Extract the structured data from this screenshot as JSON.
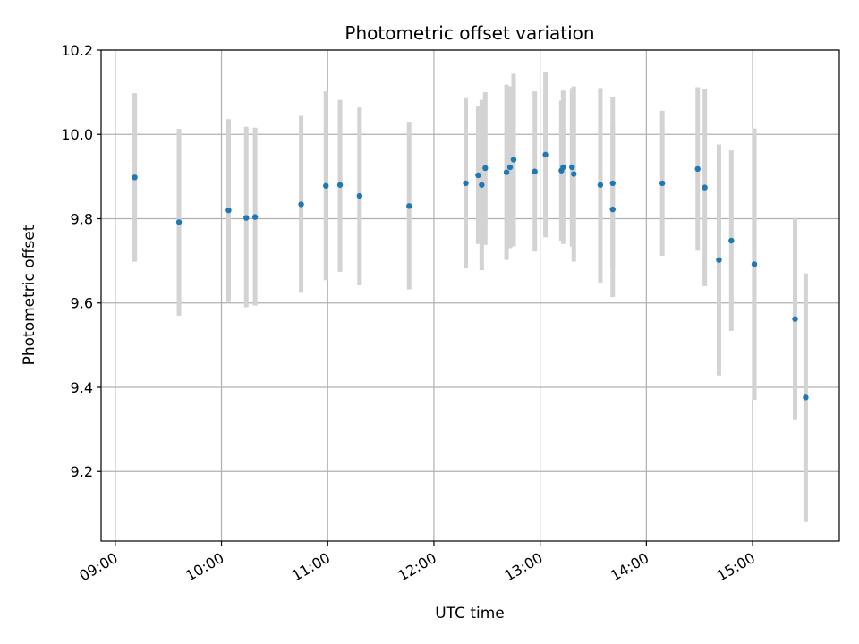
{
  "chart_data": {
    "type": "scatter",
    "title": "Photometric offset variation",
    "xlabel": "UTC time",
    "ylabel": "Photometric offset",
    "x_tick_labels": [
      "09:00",
      "10:00",
      "11:00",
      "12:00",
      "13:00",
      "14:00",
      "15:00"
    ],
    "y_tick_labels": [
      "9.2",
      "9.4",
      "9.6",
      "9.8",
      "10.0",
      "10.2"
    ],
    "xlim": [
      "08:52",
      "15:49"
    ],
    "ylim": [
      9.035,
      10.2
    ],
    "grid": true,
    "colors": {
      "point": "#1f77b4",
      "error_bar": "#d3d3d3",
      "grid": "#b0b0b0"
    },
    "series": [
      {
        "error_bars": true,
        "points": [
          {
            "x": "09:11",
            "y": 9.898,
            "ylow": 9.698,
            "yhigh": 10.098
          },
          {
            "x": "09:36",
            "y": 9.792,
            "ylow": 9.57,
            "yhigh": 10.013
          },
          {
            "x": "10:04",
            "y": 9.82,
            "ylow": 9.602,
            "yhigh": 10.036
          },
          {
            "x": "10:14",
            "y": 9.802,
            "ylow": 9.59,
            "yhigh": 10.018
          },
          {
            "x": "10:19",
            "y": 9.804,
            "ylow": 9.594,
            "yhigh": 10.016
          },
          {
            "x": "10:45",
            "y": 9.834,
            "ylow": 9.624,
            "yhigh": 10.044
          },
          {
            "x": "10:59",
            "y": 9.878,
            "ylow": 9.654,
            "yhigh": 10.102
          },
          {
            "x": "11:07",
            "y": 9.88,
            "ylow": 9.674,
            "yhigh": 10.082
          },
          {
            "x": "11:18",
            "y": 9.854,
            "ylow": 9.642,
            "yhigh": 10.064
          },
          {
            "x": "11:46",
            "y": 9.83,
            "ylow": 9.632,
            "yhigh": 10.03
          },
          {
            "x": "12:18",
            "y": 9.884,
            "ylow": 9.682,
            "yhigh": 10.086
          },
          {
            "x": "12:25",
            "y": 9.903,
            "ylow": 9.74,
            "yhigh": 10.066
          },
          {
            "x": "12:27",
            "y": 9.88,
            "ylow": 9.678,
            "yhigh": 10.082
          },
          {
            "x": "12:29",
            "y": 9.92,
            "ylow": 9.738,
            "yhigh": 10.1
          },
          {
            "x": "12:41",
            "y": 9.91,
            "ylow": 9.702,
            "yhigh": 10.118
          },
          {
            "x": "12:43",
            "y": 9.922,
            "ylow": 9.73,
            "yhigh": 10.114
          },
          {
            "x": "12:45",
            "y": 9.94,
            "ylow": 9.734,
            "yhigh": 10.144
          },
          {
            "x": "12:57",
            "y": 9.912,
            "ylow": 9.722,
            "yhigh": 10.102
          },
          {
            "x": "13:03",
            "y": 9.952,
            "ylow": 9.756,
            "yhigh": 10.148
          },
          {
            "x": "13:12",
            "y": 9.914,
            "ylow": 9.748,
            "yhigh": 10.08
          },
          {
            "x": "13:13",
            "y": 9.922,
            "ylow": 9.74,
            "yhigh": 10.104
          },
          {
            "x": "13:18",
            "y": 9.922,
            "ylow": 9.734,
            "yhigh": 10.11
          },
          {
            "x": "13:19",
            "y": 9.906,
            "ylow": 9.698,
            "yhigh": 10.114
          },
          {
            "x": "13:34",
            "y": 9.88,
            "ylow": 9.648,
            "yhigh": 10.11
          },
          {
            "x": "13:41",
            "y": 9.884,
            "ylow": 9.68,
            "yhigh": 10.09
          },
          {
            "x": "13:41",
            "y": 9.822,
            "ylow": 9.614,
            "yhigh": 10.03
          },
          {
            "x": "14:09",
            "y": 9.884,
            "ylow": 9.712,
            "yhigh": 10.056
          },
          {
            "x": "14:29",
            "y": 9.918,
            "ylow": 9.724,
            "yhigh": 10.112
          },
          {
            "x": "14:33",
            "y": 9.874,
            "ylow": 9.64,
            "yhigh": 10.108
          },
          {
            "x": "14:41",
            "y": 9.702,
            "ylow": 9.428,
            "yhigh": 9.976
          },
          {
            "x": "14:48",
            "y": 9.748,
            "ylow": 9.534,
            "yhigh": 9.962
          },
          {
            "x": "15:01",
            "y": 9.692,
            "ylow": 9.37,
            "yhigh": 10.014
          },
          {
            "x": "15:24",
            "y": 9.562,
            "ylow": 9.322,
            "yhigh": 9.802
          },
          {
            "x": "15:30",
            "y": 9.376,
            "ylow": 9.08,
            "yhigh": 9.67
          }
        ]
      }
    ]
  }
}
